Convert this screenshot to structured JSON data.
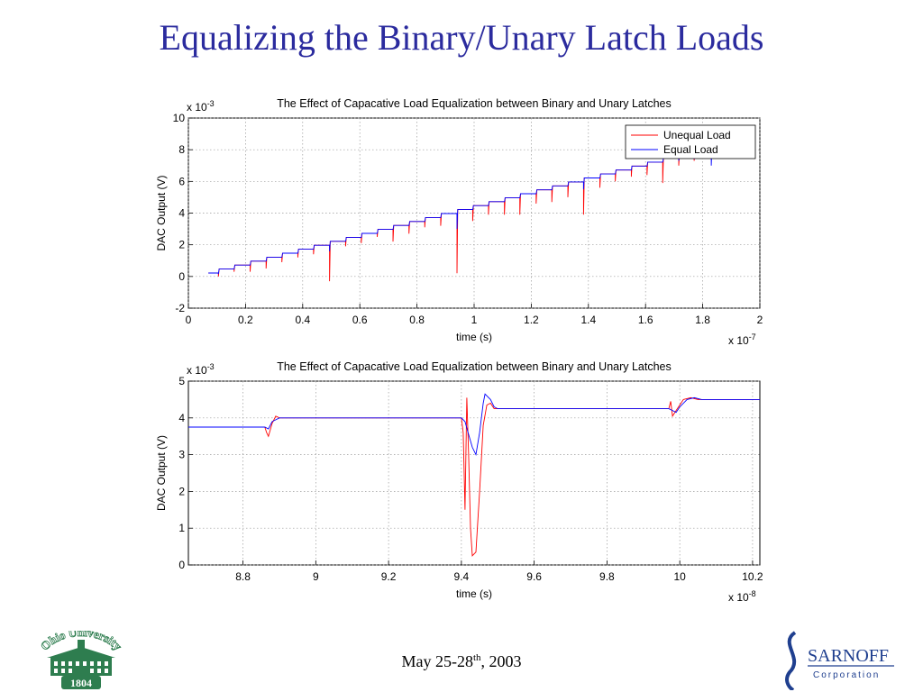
{
  "slide": {
    "title": "Equalizing the Binary/Unary Latch Loads",
    "date_main": "May 25-28",
    "date_sup": "th",
    "date_year": ", 2003"
  },
  "logos": {
    "ohio_text": "Ohio University",
    "ohio_year": "1804",
    "sarnoff_name": "SARNOFF",
    "sarnoff_sub": "Corporation"
  },
  "colors": {
    "title": "#2b2b9e",
    "unequal": "#ff0000",
    "equal": "#0000ff",
    "ohio_green": "#2e7d4f",
    "sarnoff_blue": "#1f3f8f"
  },
  "chart_data": [
    {
      "type": "line",
      "title": "The Effect of Capacative Load Equalization between Binary and Unary Latches",
      "xlabel": "time (s)",
      "ylabel": "DAC Output (V)",
      "x_multiplier": "x 10-7",
      "y_multiplier": "x 10-3",
      "xlim": [
        0,
        2
      ],
      "ylim": [
        -2,
        10
      ],
      "xticks": [
        0,
        0.2,
        0.4,
        0.6,
        0.8,
        1,
        1.2,
        1.4,
        1.6,
        1.8,
        2
      ],
      "yticks": [
        -2,
        0,
        2,
        4,
        6,
        8,
        10
      ],
      "grid": true,
      "legend": "top-right",
      "staircase": {
        "x_start": 0.07,
        "step_dx": 0.0555,
        "first_level": 0.22,
        "step_dy": 0.25,
        "steps": 32,
        "x_end": 1.85
      },
      "series": [
        {
          "name": "Unequal Load",
          "glitches": [
            {
              "x": 0.105,
              "min": 0.0
            },
            {
              "x": 0.16,
              "min": 0.3
            },
            {
              "x": 0.216,
              "min": 0.3
            },
            {
              "x": 0.272,
              "min": 0.5
            },
            {
              "x": 0.327,
              "min": 0.9
            },
            {
              "x": 0.383,
              "min": 1.2
            },
            {
              "x": 0.438,
              "min": 1.4
            },
            {
              "x": 0.494,
              "min": -0.3
            },
            {
              "x": 0.55,
              "min": 1.9
            },
            {
              "x": 0.605,
              "min": 2.1
            },
            {
              "x": 0.661,
              "min": 2.5
            },
            {
              "x": 0.716,
              "min": 2.2
            },
            {
              "x": 0.772,
              "min": 2.7
            },
            {
              "x": 0.827,
              "min": 3.1
            },
            {
              "x": 0.883,
              "min": 3.2
            },
            {
              "x": 0.94,
              "min": 0.2
            },
            {
              "x": 0.995,
              "min": 3.5
            },
            {
              "x": 1.05,
              "min": 3.9
            },
            {
              "x": 1.106,
              "min": 3.9
            },
            {
              "x": 1.16,
              "min": 3.9
            },
            {
              "x": 1.217,
              "min": 4.6
            },
            {
              "x": 1.272,
              "min": 4.7
            },
            {
              "x": 1.328,
              "min": 5.0
            },
            {
              "x": 1.383,
              "min": 3.9
            },
            {
              "x": 1.44,
              "min": 5.6
            },
            {
              "x": 1.494,
              "min": 6.0
            },
            {
              "x": 1.55,
              "min": 6.3
            },
            {
              "x": 1.605,
              "min": 6.4
            },
            {
              "x": 1.66,
              "min": 5.9
            },
            {
              "x": 1.716,
              "min": 7.0
            },
            {
              "x": 1.77,
              "min": 7.3
            },
            {
              "x": 1.83,
              "min": 7.4
            }
          ]
        },
        {
          "name": "Equal Load",
          "glitches": [
            {
              "x": 0.105,
              "min": 0.15
            },
            {
              "x": 0.16,
              "min": 0.45
            },
            {
              "x": 0.216,
              "min": 0.7
            },
            {
              "x": 0.272,
              "min": 0.95
            },
            {
              "x": 0.327,
              "min": 1.2
            },
            {
              "x": 0.383,
              "min": 1.45
            },
            {
              "x": 0.438,
              "min": 1.7
            },
            {
              "x": 0.494,
              "min": 1.6
            },
            {
              "x": 0.55,
              "min": 2.2
            },
            {
              "x": 0.605,
              "min": 2.45
            },
            {
              "x": 0.661,
              "min": 2.7
            },
            {
              "x": 0.716,
              "min": 2.95
            },
            {
              "x": 0.772,
              "min": 3.2
            },
            {
              "x": 0.827,
              "min": 3.45
            },
            {
              "x": 0.883,
              "min": 3.7
            },
            {
              "x": 0.94,
              "min": 3.0
            },
            {
              "x": 0.995,
              "min": 4.2
            },
            {
              "x": 1.05,
              "min": 4.45
            },
            {
              "x": 1.106,
              "min": 4.7
            },
            {
              "x": 1.16,
              "min": 4.95
            },
            {
              "x": 1.217,
              "min": 5.2
            },
            {
              "x": 1.272,
              "min": 5.45
            },
            {
              "x": 1.328,
              "min": 5.7
            },
            {
              "x": 1.383,
              "min": 5.5
            },
            {
              "x": 1.44,
              "min": 6.2
            },
            {
              "x": 1.494,
              "min": 6.45
            },
            {
              "x": 1.55,
              "min": 6.7
            },
            {
              "x": 1.605,
              "min": 6.95
            },
            {
              "x": 1.66,
              "min": 7.2
            },
            {
              "x": 1.716,
              "min": 7.3
            },
            {
              "x": 1.77,
              "min": 7.4
            },
            {
              "x": 1.83,
              "min": 7.0
            }
          ]
        }
      ]
    },
    {
      "type": "line",
      "title": "The Effect of Capacative Load Equalization between Binary and Unary Latches",
      "xlabel": "time (s)",
      "ylabel": "DAC Output (V)",
      "x_multiplier": "x 10-8",
      "y_multiplier": "x 10-3",
      "xlim": [
        8.65,
        10.22
      ],
      "ylim": [
        0,
        5
      ],
      "xticks": [
        8.8,
        9,
        9.2,
        9.4,
        9.6,
        9.8,
        10,
        10.2
      ],
      "yticks": [
        0,
        1,
        2,
        3,
        4,
        5
      ],
      "grid": true,
      "series": [
        {
          "name": "Unequal Load",
          "points": [
            [
              8.65,
              3.75
            ],
            [
              8.86,
              3.75
            ],
            [
              8.865,
              3.6
            ],
            [
              8.87,
              3.5
            ],
            [
              8.88,
              3.85
            ],
            [
              8.89,
              4.05
            ],
            [
              8.9,
              4.0
            ],
            [
              8.92,
              4.0
            ],
            [
              9.4,
              4.0
            ],
            [
              9.405,
              3.6
            ],
            [
              9.41,
              1.5
            ],
            [
              9.415,
              4.55
            ],
            [
              9.42,
              3.0
            ],
            [
              9.425,
              1.0
            ],
            [
              9.43,
              0.25
            ],
            [
              9.44,
              0.35
            ],
            [
              9.45,
              2.0
            ],
            [
              9.46,
              3.8
            ],
            [
              9.47,
              4.35
            ],
            [
              9.48,
              4.4
            ],
            [
              9.49,
              4.25
            ],
            [
              9.5,
              4.25
            ],
            [
              9.6,
              4.25
            ],
            [
              9.97,
              4.25
            ],
            [
              9.975,
              4.45
            ],
            [
              9.98,
              4.05
            ],
            [
              9.99,
              4.2
            ],
            [
              10.01,
              4.5
            ],
            [
              10.03,
              4.55
            ],
            [
              10.05,
              4.5
            ],
            [
              10.22,
              4.5
            ]
          ]
        },
        {
          "name": "Equal Load",
          "points": [
            [
              8.65,
              3.75
            ],
            [
              8.86,
              3.75
            ],
            [
              8.87,
              3.7
            ],
            [
              8.88,
              3.9
            ],
            [
              8.9,
              4.0
            ],
            [
              8.92,
              4.0
            ],
            [
              9.4,
              4.0
            ],
            [
              9.41,
              3.9
            ],
            [
              9.42,
              3.55
            ],
            [
              9.43,
              3.2
            ],
            [
              9.44,
              3.0
            ],
            [
              9.45,
              3.6
            ],
            [
              9.46,
              4.4
            ],
            [
              9.465,
              4.65
            ],
            [
              9.48,
              4.5
            ],
            [
              9.49,
              4.3
            ],
            [
              9.5,
              4.25
            ],
            [
              9.6,
              4.25
            ],
            [
              9.97,
              4.25
            ],
            [
              9.98,
              4.2
            ],
            [
              9.99,
              4.15
            ],
            [
              10.0,
              4.3
            ],
            [
              10.02,
              4.5
            ],
            [
              10.04,
              4.55
            ],
            [
              10.06,
              4.5
            ],
            [
              10.22,
              4.5
            ]
          ]
        }
      ]
    }
  ]
}
